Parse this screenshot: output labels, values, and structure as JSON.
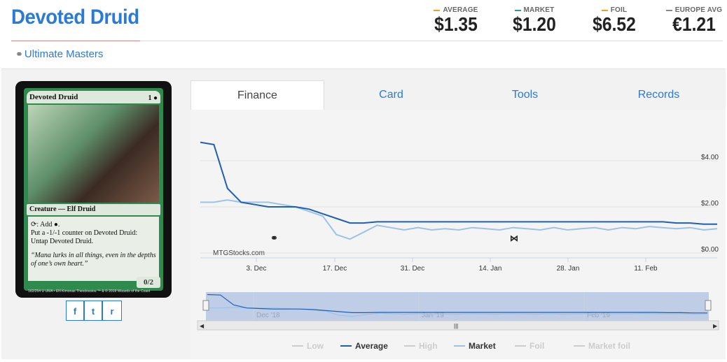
{
  "card": {
    "title": "Devoted Druid",
    "set_name": "Ultimate Masters",
    "set_icon": "link-icon"
  },
  "prices": [
    {
      "label": "AVERAGE",
      "value": "$1.35",
      "color": "#f0a020"
    },
    {
      "label": "MARKET",
      "value": "$1.20",
      "color": "#20a0a0"
    },
    {
      "label": "FOIL",
      "value": "$6.52",
      "color": "#f0a020"
    },
    {
      "label": "EUROPE AVG",
      "value": "€1.21",
      "color": "#888888"
    }
  ],
  "card_image": {
    "name": "Devoted Druid",
    "cost": "1 ●",
    "type": "Creature — Elf Druid",
    "rules": ": Add ●.",
    "rules2": "Put a -1/-1 counter on Devoted Druid: Untap Devoted Druid.",
    "flavor": "“Mana lurks in all things, even in the depths of one’s own heart.”",
    "pt": "0/2",
    "footer": "162/254 U  UMA • EN  Kimonas Theodossiou   ™ & © 2018 Wizards of the Coast"
  },
  "share": [
    {
      "icon": "facebook-icon",
      "glyph": "f"
    },
    {
      "icon": "twitter-icon",
      "glyph": "t"
    },
    {
      "icon": "reddit-icon",
      "glyph": "r"
    }
  ],
  "tabs": [
    "Finance",
    "Card",
    "Tools",
    "Records"
  ],
  "active_tab": "Finance",
  "chart_data": {
    "type": "line",
    "watermark": "MTGStocks.com",
    "y_ticks": [
      "$4.00",
      "$2.00",
      "$0.00"
    ],
    "x_ticks": [
      "3. Dec",
      "17. Dec",
      "31. Dec",
      "14. Jan",
      "28. Jan",
      "11. Feb"
    ],
    "navigator_ticks": [
      "Dec '18",
      "Jan '19",
      "Feb '19"
    ],
    "ylim": [
      0,
      5
    ],
    "series": [
      {
        "name": "Average",
        "color": "#1f5fb5",
        "values": [
          4.8,
          4.7,
          2.8,
          2.2,
          2.1,
          2.0,
          2.0,
          2.0,
          1.9,
          1.7,
          1.5,
          1.3,
          1.3,
          1.35,
          1.35,
          1.35,
          1.35,
          1.35,
          1.35,
          1.35,
          1.35,
          1.35,
          1.35,
          1.35,
          1.35,
          1.35,
          1.35,
          1.35,
          1.35,
          1.35,
          1.35,
          1.35,
          1.35,
          1.35,
          1.35,
          1.3,
          1.3,
          1.25,
          1.25
        ]
      },
      {
        "name": "Market",
        "color": "#9cc3e6",
        "values": [
          2.2,
          2.2,
          2.3,
          2.2,
          2.2,
          2.2,
          2.1,
          2.0,
          1.8,
          1.6,
          0.8,
          0.6,
          0.9,
          1.2,
          1.1,
          1.0,
          1.1,
          1.0,
          1.05,
          1.0,
          1.1,
          1.05,
          1.0,
          1.1,
          1.05,
          1.0,
          1.1,
          1.0,
          1.05,
          1.1,
          1.0,
          1.1,
          1.05,
          1.15,
          1.1,
          1.05,
          1.1,
          1.0,
          1.05
        ]
      }
    ],
    "legend": [
      {
        "name": "Low",
        "color": "#cccccc",
        "active": false
      },
      {
        "name": "Average",
        "color": "#1f5fb5",
        "active": true
      },
      {
        "name": "High",
        "color": "#cccccc",
        "active": false
      },
      {
        "name": "Market",
        "color": "#9cc3e6",
        "active": true
      },
      {
        "name": "Foil",
        "color": "#cccccc",
        "active": false
      },
      {
        "name": "Market foil",
        "color": "#cccccc",
        "active": false
      }
    ],
    "event_icons": [
      "set-release-icon",
      "ikoria-icon"
    ]
  }
}
